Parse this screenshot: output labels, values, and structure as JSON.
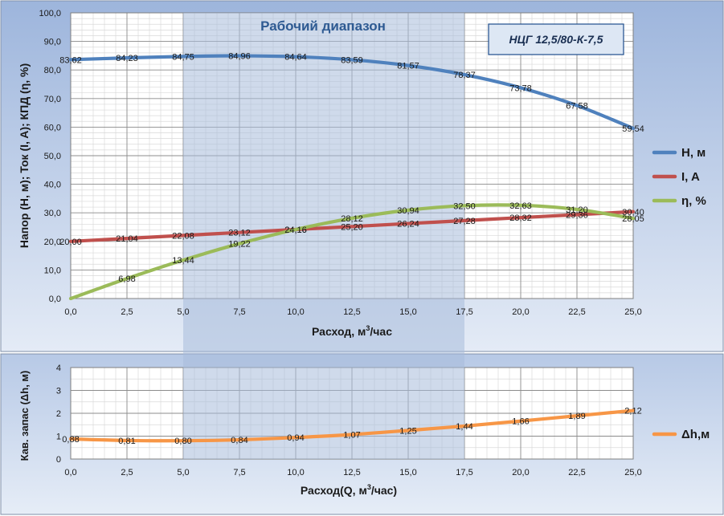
{
  "chart_data": [
    {
      "type": "line",
      "title": "Рабочий диапазон",
      "model_label": "НЦГ 12,5/80-К-7,5",
      "xlabel": "Расход, м³/час",
      "ylabel": "Напор  (Н, м); Ток (I, A); КПД (η, %)",
      "xlim": [
        0,
        25
      ],
      "ylim": [
        0,
        100
      ],
      "xticks": [
        "0,0",
        "2,5",
        "5,0",
        "7,5",
        "10,0",
        "12,5",
        "15,0",
        "17,5",
        "20,0",
        "22,5",
        "25,0"
      ],
      "yticks": [
        "0,0",
        "10,0",
        "20,0",
        "30,0",
        "40,0",
        "50,0",
        "60,0",
        "70,0",
        "80,0",
        "90,0",
        "100,0"
      ],
      "working_range": [
        5,
        17.5
      ],
      "grid": true,
      "legend": "right",
      "series": [
        {
          "name": "Н, м",
          "color": "#4f81bd",
          "x": [
            0,
            2.5,
            5,
            7.5,
            10,
            12.5,
            15,
            17.5,
            20,
            22.5,
            25
          ],
          "values": [
            83.62,
            84.23,
            84.75,
            84.96,
            84.64,
            83.59,
            81.57,
            78.37,
            73.78,
            67.58,
            59.54
          ],
          "labels": [
            "83,62",
            "84,23",
            "84,75",
            "84,96",
            "84,64",
            "83,59",
            "81,57",
            "78,37",
            "73,78",
            "67,58",
            "59,54"
          ]
        },
        {
          "name": "I, A",
          "color": "#c0504d",
          "x": [
            0,
            2.5,
            5,
            7.5,
            10,
            12.5,
            15,
            17.5,
            20,
            22.5,
            25
          ],
          "values": [
            20.0,
            21.04,
            22.08,
            23.12,
            24.16,
            25.2,
            26.24,
            27.28,
            28.32,
            29.36,
            30.4
          ],
          "labels": [
            "20,00",
            "21,04",
            "22,08",
            "23,12",
            "24,16",
            "25,20",
            "26,24",
            "27,28",
            "28,32",
            "29,36",
            "30,40"
          ]
        },
        {
          "name": "η, %",
          "color": "#9bbb59",
          "x": [
            0,
            2.5,
            5,
            7.5,
            10,
            12.5,
            15,
            17.5,
            20,
            22.5,
            25
          ],
          "values": [
            0,
            6.98,
            13.44,
            19.22,
            24.16,
            28.12,
            30.94,
            32.5,
            32.63,
            31.2,
            28.05
          ],
          "labels": [
            "",
            "6,98",
            "13,44",
            "19,22",
            "24,16",
            "28,12",
            "30,94",
            "32,50",
            "32,63",
            "31,20",
            "28,05"
          ]
        }
      ]
    },
    {
      "type": "line",
      "xlabel": "Расход(Q, м³/час)",
      "ylabel": "Кав. запас (Δh, м)",
      "xlim": [
        0,
        25
      ],
      "ylim": [
        0,
        4
      ],
      "xticks": [
        "0,0",
        "2,5",
        "5,0",
        "7,5",
        "10,0",
        "12,5",
        "15,0",
        "17,5",
        "20,0",
        "22,5",
        "25,0"
      ],
      "yticks": [
        "0",
        "1",
        "2",
        "3",
        "4"
      ],
      "working_range": [
        5,
        17.5
      ],
      "grid": true,
      "legend": "right",
      "series": [
        {
          "name": "Δh,м",
          "color": "#f79646",
          "x": [
            0,
            2.5,
            5,
            7.5,
            10,
            12.5,
            15,
            17.5,
            20,
            22.5,
            25
          ],
          "values": [
            0.88,
            0.81,
            0.8,
            0.84,
            0.94,
            1.07,
            1.25,
            1.44,
            1.66,
            1.89,
            2.12
          ],
          "labels": [
            "0,88",
            "0,81",
            "0,80",
            "0,84",
            "0,94",
            "1,07",
            "1,25",
            "1,44",
            "1,66",
            "1,89",
            "2,12"
          ]
        }
      ]
    }
  ]
}
